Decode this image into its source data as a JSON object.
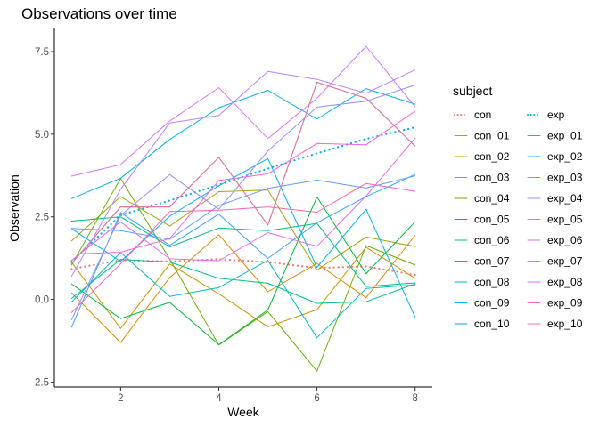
{
  "chart_data": {
    "type": "line",
    "title": "Observations over time",
    "xlabel": "Week",
    "ylabel": "Observation",
    "xlim": [
      0.65,
      8.35
    ],
    "ylim": [
      -2.65,
      8.2
    ],
    "x_ticks": [
      2,
      4,
      6,
      8
    ],
    "y_ticks": [
      -2.5,
      0,
      2.5,
      5,
      7.5
    ],
    "y_tick_labels": [
      "-2.5",
      "0.0",
      "2.5",
      "5.0",
      "7.5"
    ],
    "grid": false,
    "legend_title": "subject",
    "legend_position": "right",
    "legend_columns": 2,
    "x": [
      1,
      2,
      3,
      4,
      5,
      6,
      7,
      8
    ],
    "series": [
      {
        "name": "con",
        "color": "#F8766D",
        "style": "dotted",
        "values": [
          0.92,
          1.19,
          1.15,
          1.22,
          1.13,
          0.95,
          1.0,
          0.74
        ]
      },
      {
        "name": "con_01",
        "color": "#E58700",
        "style": "solid",
        "values": [
          0.2,
          -1.31,
          0.66,
          1.96,
          0.23,
          1.09,
          0.05,
          1.94
        ]
      },
      {
        "name": "con_02",
        "color": "#C99800",
        "style": "solid",
        "values": [
          1.13,
          -0.88,
          1.07,
          0.17,
          -0.83,
          -0.31,
          1.58,
          0.64
        ]
      },
      {
        "name": "con_03",
        "color": "#A3A500",
        "style": "solid",
        "values": [
          1.77,
          3.11,
          2.22,
          3.26,
          3.31,
          0.89,
          1.89,
          1.6
        ]
      },
      {
        "name": "con_04",
        "color": "#6BB100",
        "style": "solid",
        "values": [
          1.04,
          3.66,
          1.22,
          -1.38,
          -0.37,
          -2.17,
          1.63,
          1.04
        ]
      },
      {
        "name": "con_05",
        "color": "#00BA38",
        "style": "solid",
        "values": [
          0.47,
          -0.58,
          -0.09,
          -1.37,
          -0.32,
          3.1,
          0.78,
          2.35
        ]
      },
      {
        "name": "con_06",
        "color": "#00BF7D",
        "style": "solid",
        "values": [
          2.37,
          2.5,
          1.59,
          2.16,
          2.08,
          2.3,
          0.39,
          0.5
        ]
      },
      {
        "name": "con_07",
        "color": "#00C08B",
        "style": "solid",
        "values": [
          0.03,
          1.21,
          1.13,
          0.64,
          0.49,
          -0.12,
          -0.07,
          0.47
        ]
      },
      {
        "name": "con_08",
        "color": "#00BFC4",
        "style": "solid",
        "values": [
          -0.08,
          1.42,
          0.09,
          0.36,
          1.18,
          -1.16,
          0.33,
          0.44
        ]
      },
      {
        "name": "con_09",
        "color": "#00B4F0",
        "style": "solid",
        "values": [
          2.14,
          1.15,
          2.52,
          3.44,
          4.26,
          0.97,
          2.73,
          -0.53
        ]
      },
      {
        "name": "con_10",
        "color": "#00A9FF",
        "style": "solid",
        "values": [
          1.09,
          2.8,
          2.8,
          4.3,
          2.25,
          6.57,
          6.09,
          4.64
        ]
      },
      {
        "name": "exp",
        "color": "#00B0F6",
        "style": "dotted",
        "values": [
          1.14,
          2.55,
          2.99,
          3.47,
          3.96,
          4.42,
          4.86,
          5.21
        ]
      },
      {
        "name": "exp_01",
        "color": "#00B8E7",
        "style": "solid",
        "values": [
          3.05,
          3.67,
          4.84,
          5.8,
          6.33,
          5.46,
          6.38,
          5.91
        ]
      },
      {
        "name": "exp_02",
        "color": "#35A2FF",
        "style": "solid",
        "values": [
          -0.84,
          2.63,
          1.64,
          2.58,
          1.24,
          2.32,
          3.11,
          3.78
        ]
      },
      {
        "name": "exp_03",
        "color": "#619CFF",
        "style": "solid",
        "values": [
          2.15,
          2.08,
          1.82,
          2.84,
          3.36,
          3.61,
          3.37,
          3.74
        ]
      },
      {
        "name": "exp_04",
        "color": "#9590FF",
        "style": "solid",
        "values": [
          -0.62,
          2.54,
          3.78,
          2.73,
          4.49,
          5.82,
          6.0,
          6.49
        ]
      },
      {
        "name": "exp_05",
        "color": "#B983FF",
        "style": "solid",
        "values": [
          0.7,
          3.33,
          5.34,
          5.57,
          6.9,
          6.66,
          6.24,
          6.95
        ]
      },
      {
        "name": "exp_06",
        "color": "#D874FD",
        "style": "solid",
        "values": [
          3.73,
          4.08,
          5.4,
          6.41,
          4.87,
          6.09,
          7.66,
          5.83
        ]
      },
      {
        "name": "exp_07",
        "color": "#E76BF3",
        "style": "solid",
        "values": [
          1.18,
          2.35,
          1.23,
          1.17,
          2.02,
          1.61,
          3.13,
          4.88
        ]
      },
      {
        "name": "exp_08",
        "color": "#F564E3",
        "style": "solid",
        "values": [
          1.37,
          1.43,
          1.84,
          3.6,
          3.8,
          4.72,
          4.68,
          5.7
        ]
      },
      {
        "name": "exp_09",
        "color": "#FF62BC",
        "style": "solid",
        "values": [
          -0.4,
          1.08,
          2.66,
          2.7,
          2.8,
          2.64,
          3.51,
          3.27
        ]
      },
      {
        "name": "exp_10",
        "color": "#FF6C91",
        "style": "solid",
        "values": [
          1.09,
          2.8,
          2.8,
          4.3,
          2.25,
          6.57,
          6.09,
          4.64
        ]
      }
    ]
  }
}
